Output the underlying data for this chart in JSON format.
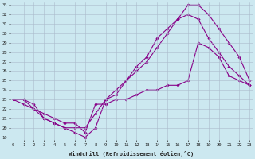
{
  "xlabel": "Windchill (Refroidissement éolien,°C)",
  "background_color": "#cce8f0",
  "grid_color": "#aabbcc",
  "line_color": "#880088",
  "xmin": 0,
  "xmax": 23,
  "ymin": 19,
  "ymax": 33,
  "series": [
    {
      "x": [
        0,
        1,
        2,
        3,
        4,
        5,
        6,
        7,
        8,
        9,
        10,
        11,
        12,
        13,
        14,
        15,
        16,
        17,
        18,
        19,
        20,
        21,
        22,
        23
      ],
      "y": [
        23,
        23,
        22,
        21,
        20.5,
        20,
        19.5,
        19,
        20,
        23,
        23.5,
        25,
        26.5,
        27.5,
        29.5,
        30.5,
        31.5,
        33,
        33,
        32,
        30.5,
        29,
        27.5,
        25
      ]
    },
    {
      "x": [
        0,
        1,
        2,
        3,
        4,
        5,
        6,
        7,
        8,
        9,
        10,
        11,
        12,
        13,
        14,
        15,
        16,
        17,
        18,
        19,
        20,
        21,
        22,
        23
      ],
      "y": [
        23,
        23,
        22.5,
        21,
        20.5,
        20,
        20,
        20,
        21.5,
        23,
        24,
        25,
        26,
        27,
        28.5,
        30,
        31.5,
        32,
        31.5,
        29.5,
        28,
        26.5,
        25.5,
        24.5
      ]
    },
    {
      "x": [
        0,
        1,
        2,
        3,
        4,
        5,
        6,
        7,
        8,
        9,
        10,
        11,
        12,
        13,
        14,
        15,
        16,
        17,
        18,
        19,
        20,
        21,
        22,
        23
      ],
      "y": [
        23,
        22.5,
        22,
        21.5,
        21,
        20.5,
        20.5,
        19.5,
        22.5,
        22.5,
        23,
        23,
        23.5,
        24,
        24,
        24.5,
        24.5,
        25,
        29,
        28.5,
        27.5,
        25.5,
        25,
        24.5
      ]
    }
  ],
  "yticks": [
    19,
    20,
    21,
    22,
    23,
    24,
    25,
    26,
    27,
    28,
    29,
    30,
    31,
    32,
    33
  ],
  "xticks": [
    0,
    1,
    2,
    3,
    4,
    5,
    6,
    7,
    8,
    9,
    10,
    11,
    12,
    13,
    14,
    15,
    16,
    17,
    18,
    19,
    20,
    21,
    22,
    23
  ]
}
